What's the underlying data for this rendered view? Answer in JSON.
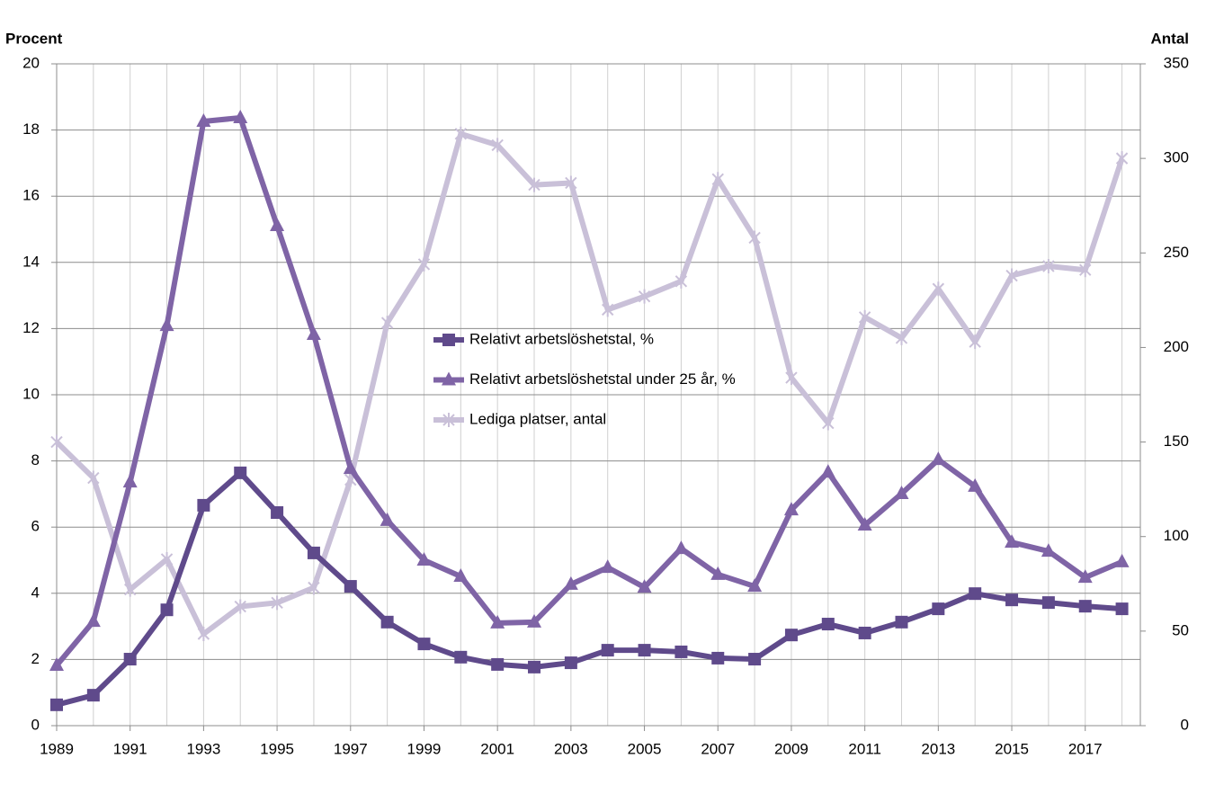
{
  "chart_data": {
    "type": "line",
    "ylabel": "Procent",
    "y2label": "Antal",
    "x": [
      1989,
      1990,
      1991,
      1992,
      1993,
      1994,
      1995,
      1996,
      1997,
      1998,
      1999,
      2000,
      2001,
      2002,
      2003,
      2004,
      2005,
      2006,
      2007,
      2008,
      2009,
      2010,
      2011,
      2012,
      2013,
      2014,
      2015,
      2016,
      2017,
      2018
    ],
    "xlim": [
      1989,
      2018.5
    ],
    "xticks": [
      1989,
      1991,
      1993,
      1995,
      1997,
      1999,
      2001,
      2003,
      2005,
      2007,
      2009,
      2011,
      2013,
      2015,
      2017
    ],
    "ylim": [
      0,
      20
    ],
    "yticks": [
      0,
      2,
      4,
      6,
      8,
      10,
      12,
      14,
      16,
      18,
      20
    ],
    "y2lim": [
      0,
      350
    ],
    "y2ticks": [
      0,
      50,
      100,
      150,
      200,
      250,
      300,
      350
    ],
    "grid": true,
    "legend": "center",
    "series": [
      {
        "name": "Relativt arbetslöshetstal, %",
        "color": "#5f4a8b",
        "marker": "square",
        "values": [
          0.63,
          0.92,
          2.01,
          3.5,
          6.66,
          7.64,
          6.44,
          5.22,
          4.21,
          3.13,
          2.47,
          2.07,
          1.85,
          1.77,
          1.9,
          2.28,
          2.28,
          2.23,
          2.04,
          2.01,
          2.74,
          3.07,
          2.8,
          3.13,
          3.53,
          3.99,
          3.8,
          3.72,
          3.61,
          3.53
        ]
      },
      {
        "name": "Relativt arbetslöshetstal under 25 år, %",
        "color": "#7f64a6",
        "marker": "triangle",
        "values": [
          1.82,
          3.15,
          7.36,
          12.09,
          18.26,
          18.37,
          15.11,
          11.82,
          7.77,
          6.2,
          5.0,
          4.51,
          3.1,
          3.13,
          4.27,
          4.78,
          4.18,
          5.35,
          4.57,
          4.21,
          6.52,
          7.66,
          6.06,
          7.01,
          8.04,
          7.23,
          5.54,
          5.27,
          4.48,
          4.95
        ]
      },
      {
        "name": "Lediga platser, antal",
        "color": "#c9c0d8",
        "marker": "star",
        "axis": "y2",
        "values": [
          150,
          131,
          72,
          88,
          48.5,
          63,
          65,
          73,
          130,
          213,
          244,
          313,
          307,
          286,
          287,
          220,
          227,
          235,
          289,
          258,
          184,
          160,
          216,
          205,
          231,
          203,
          238,
          243,
          241,
          300
        ]
      }
    ]
  }
}
